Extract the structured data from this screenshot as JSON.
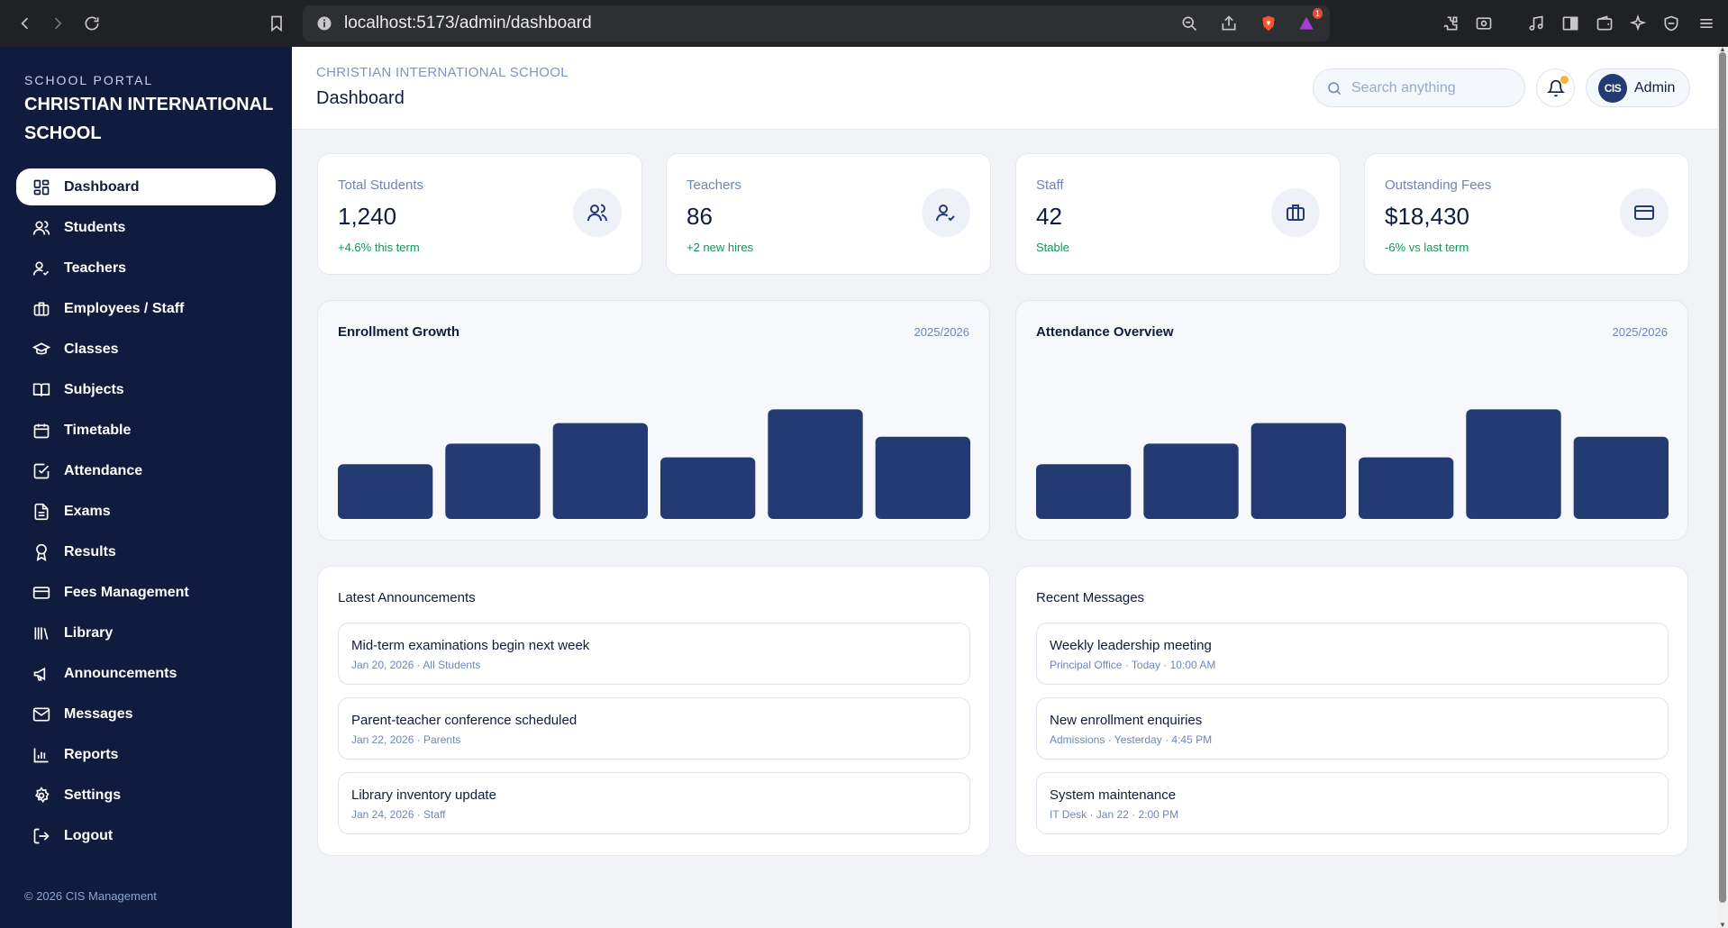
{
  "browser": {
    "url_host": "localhost",
    "url_path": ":5173/admin/dashboard",
    "extension_badge": "1"
  },
  "sidebar": {
    "eyebrow": "SCHOOL PORTAL",
    "title": "CHRISTIAN INTERNATIONAL SCHOOL",
    "items": [
      {
        "label": "Dashboard",
        "icon": "grid-icon",
        "active": true
      },
      {
        "label": "Students",
        "icon": "users-icon"
      },
      {
        "label": "Teachers",
        "icon": "user-check-icon"
      },
      {
        "label": "Employees / Staff",
        "icon": "briefcase-icon"
      },
      {
        "label": "Classes",
        "icon": "graduation-cap-icon"
      },
      {
        "label": "Subjects",
        "icon": "book-open-icon"
      },
      {
        "label": "Timetable",
        "icon": "calendar-icon"
      },
      {
        "label": "Attendance",
        "icon": "check-square-icon"
      },
      {
        "label": "Exams",
        "icon": "file-text-icon"
      },
      {
        "label": "Results",
        "icon": "award-icon"
      },
      {
        "label": "Fees Management",
        "icon": "credit-card-icon"
      },
      {
        "label": "Library",
        "icon": "library-icon"
      },
      {
        "label": "Announcements",
        "icon": "megaphone-icon"
      },
      {
        "label": "Messages",
        "icon": "mail-icon"
      },
      {
        "label": "Reports",
        "icon": "bar-chart-icon"
      },
      {
        "label": "Settings",
        "icon": "gear-icon"
      },
      {
        "label": "Logout",
        "icon": "logout-icon"
      }
    ],
    "copyright": "© 2026 CIS Management"
  },
  "header": {
    "eyebrow": "CHRISTIAN INTERNATIONAL SCHOOL",
    "title": "Dashboard",
    "search_placeholder": "Search anything",
    "avatar_initials": "CIS",
    "user_name": "Admin"
  },
  "stats": [
    {
      "label": "Total Students",
      "value": "1,240",
      "trend": "+4.6% this term",
      "icon": "users-icon"
    },
    {
      "label": "Teachers",
      "value": "86",
      "trend": "+2 new hires",
      "icon": "user-check-icon"
    },
    {
      "label": "Staff",
      "value": "42",
      "trend": "Stable",
      "icon": "briefcase-icon"
    },
    {
      "label": "Outstanding Fees",
      "value": "$18,430",
      "trend": "-6% vs last term",
      "icon": "credit-card-icon"
    }
  ],
  "charts": {
    "enrollment": {
      "title": "Enrollment Growth",
      "year": "2025/2026"
    },
    "attendance": {
      "title": "Attendance Overview",
      "year": "2025/2026"
    }
  },
  "chart_data": [
    {
      "type": "bar",
      "title": "Enrollment Growth",
      "categories": [
        "",
        "",
        "",
        "",
        "",
        ""
      ],
      "values": [
        40,
        55,
        70,
        45,
        80,
        60
      ],
      "ylim": [
        0,
        100
      ],
      "grid": false,
      "color": "#243a73"
    },
    {
      "type": "bar",
      "title": "Attendance Overview",
      "categories": [
        "",
        "",
        "",
        "",
        "",
        ""
      ],
      "values": [
        40,
        55,
        70,
        45,
        80,
        60
      ],
      "ylim": [
        0,
        100
      ],
      "grid": false,
      "color": "#243a73"
    }
  ],
  "announcements": {
    "title": "Latest Announcements",
    "items": [
      {
        "title": "Mid-term examinations begin next week",
        "meta": "Jan 20, 2026 · All Students"
      },
      {
        "title": "Parent-teacher conference scheduled",
        "meta": "Jan 22, 2026 · Parents"
      },
      {
        "title": "Library inventory update",
        "meta": "Jan 24, 2026 · Staff"
      }
    ]
  },
  "messages": {
    "title": "Recent Messages",
    "items": [
      {
        "title": "Weekly leadership meeting",
        "meta": "Principal Office · Today · 10:00 AM"
      },
      {
        "title": "New enrollment enquiries",
        "meta": "Admissions · Yesterday · 4:45 PM"
      },
      {
        "title": "System maintenance",
        "meta": "IT Desk · Jan 22 · 2:00 PM"
      }
    ]
  },
  "colors": {
    "sidebar_bg": "#101c3d",
    "accent": "#243a73",
    "trend_positive": "#14935b",
    "muted_text": "#6f85b8"
  }
}
